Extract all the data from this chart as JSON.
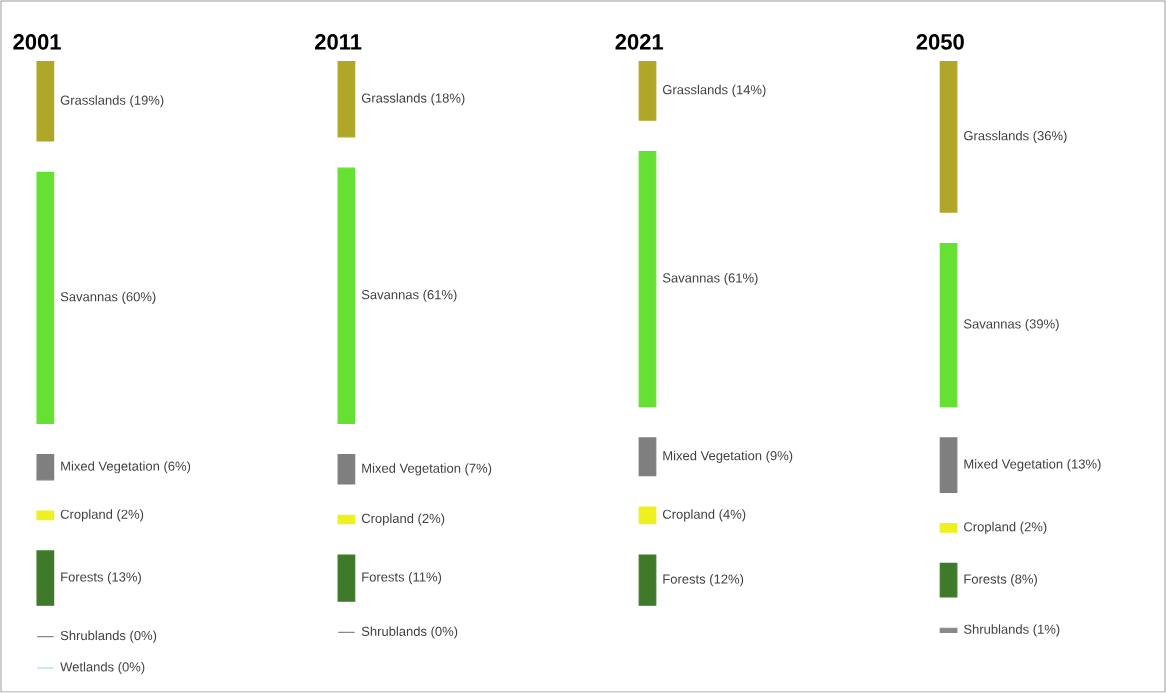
{
  "chart_data": {
    "type": "other",
    "categories": [
      "2001",
      "2011",
      "2021",
      "2050"
    ],
    "series": [
      {
        "color": "#b0a628",
        "values": [
          19,
          18,
          14,
          36
        ],
        "value_labels": [
          "Grasslands (19%)",
          "Grasslands (18%)",
          "Grasslands (14%)",
          "Grasslands (36%)"
        ]
      },
      {
        "color": "#66e033",
        "values": [
          60,
          61,
          61,
          39
        ],
        "value_labels": [
          "Savannas (60%)",
          "Savannas (61%)",
          "Savannas (61%)",
          "Savannas (39%)"
        ]
      },
      {
        "color": "#7f7f7f",
        "values": [
          6,
          7,
          9,
          13
        ],
        "value_labels": [
          "Mixed Vegetation (6%)",
          "Mixed Vegetation (7%)",
          "Mixed Vegetation (9%)",
          "Mixed Vegetation (13%)"
        ]
      },
      {
        "color": "#eef020",
        "values": [
          2,
          2,
          4,
          2
        ],
        "value_labels": [
          "Cropland (2%)",
          "Cropland (2%)",
          "Cropland (4%)",
          "Cropland (2%)"
        ]
      },
      {
        "color": "#3e7a2a",
        "values": [
          13,
          11,
          12,
          8
        ],
        "value_labels": [
          "Forests (13%)",
          "Forests (11%)",
          "Forests (12%)",
          "Forests (8%)"
        ]
      },
      {
        "color": "#888888",
        "values": [
          0,
          0,
          null,
          1
        ],
        "value_labels": [
          "Shrublands (0%)",
          "Shrublands (0%)",
          null,
          "Shrublands (1%)"
        ]
      },
      {
        "color": "#9ccfe0",
        "values": [
          0,
          null,
          null,
          null
        ],
        "value_labels": [
          "Wetlands (0%)",
          null,
          null,
          null
        ]
      }
    ]
  }
}
